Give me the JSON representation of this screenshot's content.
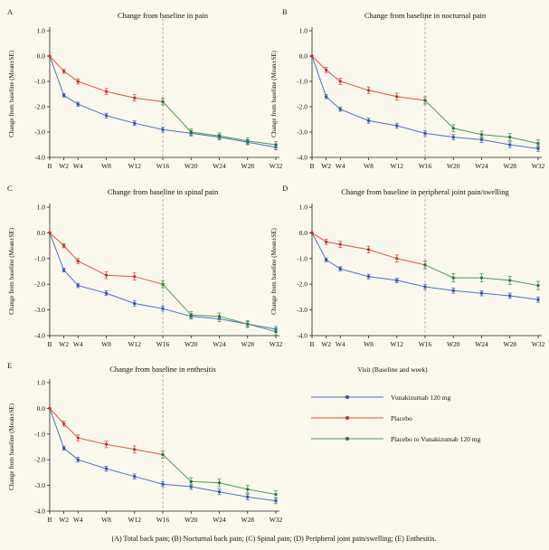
{
  "legend": {
    "title": "Visit (Baseline and week)",
    "items": [
      {
        "label": "Vunakizumab 120 mg",
        "color": "#4a72c8"
      },
      {
        "label": "Placebo",
        "color": "#e0533f"
      },
      {
        "label": "Placebo to Vunakizumab 120 mg",
        "color": "#4f9a5a"
      }
    ]
  },
  "caption": "(A)  Total back pain; (B) Nocturnal back pain; (C) Spinal pain; (D) Peripheral joint pain/swelling; (E) Enthesitis.",
  "chart_data": [
    {
      "panel": "A",
      "type": "line",
      "title": "Change from baseline in pain",
      "ylabel": "Change from baseline (Mean±SE)",
      "ylim": [
        -4.0,
        1.0
      ],
      "yticks": [
        "1.0",
        "0.0",
        "-1.0",
        "-2.0",
        "-3.0",
        "-4.0"
      ],
      "x": [
        "B",
        "W2",
        "W4",
        "W8",
        "W12",
        "W16",
        "W20",
        "W24",
        "W28",
        "W32"
      ],
      "x_pos": [
        0,
        2,
        4,
        8,
        12,
        16,
        20,
        24,
        28,
        32
      ],
      "reference_line_x": "W16",
      "series": [
        {
          "name": "Vunakizumab 120 mg",
          "x": [
            0,
            2,
            4,
            8,
            12,
            16,
            20,
            24,
            28,
            32
          ],
          "y": [
            0,
            -1.55,
            -1.9,
            -2.35,
            -2.65,
            -2.9,
            -3.05,
            -3.2,
            -3.4,
            -3.6
          ],
          "se": [
            0,
            0.07,
            0.08,
            0.09,
            0.09,
            0.1,
            0.1,
            0.1,
            0.1,
            0.1
          ]
        },
        {
          "name": "Placebo",
          "x": [
            0,
            2,
            4,
            8,
            12,
            16
          ],
          "y": [
            0,
            -0.6,
            -1.0,
            -1.4,
            -1.65,
            -1.8
          ],
          "se": [
            0,
            0.08,
            0.1,
            0.12,
            0.13,
            0.13
          ]
        },
        {
          "name": "Placebo to Vunakizumab 120 mg",
          "x": [
            16,
            20,
            24,
            28,
            32
          ],
          "y": [
            -1.8,
            -3.0,
            -3.15,
            -3.35,
            -3.5
          ],
          "se": [
            0.13,
            0.12,
            0.12,
            0.12,
            0.12
          ]
        }
      ]
    },
    {
      "panel": "B",
      "type": "line",
      "title": "Change from baseline in nocturnal pain",
      "ylabel": "Change from baseline (Mean±SE)",
      "ylim": [
        -4.0,
        1.0
      ],
      "yticks": [
        "1.0",
        "0.0",
        "-1.0",
        "-2.0",
        "-3.0",
        "-4.0"
      ],
      "x": [
        "B",
        "W2",
        "W4",
        "W8",
        "W12",
        "W16",
        "W20",
        "W24",
        "W28",
        "W32"
      ],
      "x_pos": [
        0,
        2,
        4,
        8,
        12,
        16,
        20,
        24,
        28,
        32
      ],
      "reference_line_x": "W16",
      "series": [
        {
          "name": "Vunakizumab 120 mg",
          "x": [
            0,
            2,
            4,
            8,
            12,
            16,
            20,
            24,
            28,
            32
          ],
          "y": [
            0,
            -1.6,
            -2.1,
            -2.55,
            -2.75,
            -3.05,
            -3.2,
            -3.3,
            -3.5,
            -3.65
          ],
          "se": [
            0,
            0.08,
            0.08,
            0.1,
            0.1,
            0.1,
            0.1,
            0.11,
            0.11,
            0.11
          ]
        },
        {
          "name": "Placebo",
          "x": [
            0,
            2,
            4,
            8,
            12,
            16
          ],
          "y": [
            0,
            -0.55,
            -1.0,
            -1.35,
            -1.6,
            -1.75
          ],
          "se": [
            0,
            0.1,
            0.12,
            0.13,
            0.14,
            0.14
          ]
        },
        {
          "name": "Placebo to Vunakizumab 120 mg",
          "x": [
            16,
            20,
            24,
            28,
            32
          ],
          "y": [
            -1.75,
            -2.85,
            -3.1,
            -3.2,
            -3.45
          ],
          "se": [
            0.14,
            0.14,
            0.14,
            0.14,
            0.14
          ]
        }
      ]
    },
    {
      "panel": "C",
      "type": "line",
      "title": "Change from baseline in spinal pain",
      "ylabel": "Change from baseline (Mean±SE)",
      "ylim": [
        -4.0,
        1.0
      ],
      "yticks": [
        "1.0",
        "0.0",
        "-1.0",
        "-2.0",
        "-3.0",
        "-4.0"
      ],
      "x": [
        "B",
        "W2",
        "W4",
        "W8",
        "W12",
        "W16",
        "W20",
        "W24",
        "W28",
        "W32"
      ],
      "x_pos": [
        0,
        2,
        4,
        8,
        12,
        16,
        20,
        24,
        28,
        32
      ],
      "reference_line_x": "W16",
      "series": [
        {
          "name": "Vunakizumab 120 mg",
          "x": [
            0,
            2,
            4,
            8,
            12,
            16,
            20,
            24,
            28,
            32
          ],
          "y": [
            0,
            -1.45,
            -2.05,
            -2.35,
            -2.75,
            -2.95,
            -3.25,
            -3.35,
            -3.55,
            -3.75
          ],
          "se": [
            0,
            0.07,
            0.08,
            0.09,
            0.1,
            0.1,
            0.1,
            0.1,
            0.1,
            0.1
          ]
        },
        {
          "name": "Placebo",
          "x": [
            0,
            2,
            4,
            8,
            12,
            16
          ],
          "y": [
            0,
            -0.5,
            -1.1,
            -1.65,
            -1.7,
            -2.0
          ],
          "se": [
            0,
            0.08,
            0.1,
            0.13,
            0.14,
            0.14
          ]
        },
        {
          "name": "Placebo to Vunakizumab 120 mg",
          "x": [
            16,
            20,
            24,
            28,
            32
          ],
          "y": [
            -2.0,
            -3.2,
            -3.25,
            -3.55,
            -3.85
          ],
          "se": [
            0.14,
            0.13,
            0.13,
            0.13,
            0.13
          ]
        }
      ]
    },
    {
      "panel": "D",
      "type": "line",
      "title": "Change from baseline in peripheral joint pain/swelling",
      "ylabel": "Change from baseline (Mean±SE)",
      "ylim": [
        -4.0,
        1.0
      ],
      "yticks": [
        "1.0",
        "0.0",
        "-1.0",
        "-2.0",
        "-3.0",
        "-4.0"
      ],
      "x": [
        "B",
        "W2",
        "W4",
        "W8",
        "W12",
        "W16",
        "W20",
        "W24",
        "W28",
        "W32"
      ],
      "x_pos": [
        0,
        2,
        4,
        8,
        12,
        16,
        20,
        24,
        28,
        32
      ],
      "reference_line_x": "W16",
      "series": [
        {
          "name": "Vunakizumab 120 mg",
          "x": [
            0,
            2,
            4,
            8,
            12,
            16,
            20,
            24,
            28,
            32
          ],
          "y": [
            0,
            -1.05,
            -1.4,
            -1.7,
            -1.85,
            -2.1,
            -2.25,
            -2.35,
            -2.45,
            -2.6
          ],
          "se": [
            0,
            0.07,
            0.08,
            0.09,
            0.09,
            0.1,
            0.1,
            0.1,
            0.1,
            0.1
          ]
        },
        {
          "name": "Placebo",
          "x": [
            0,
            2,
            4,
            8,
            12,
            16
          ],
          "y": [
            0,
            -0.35,
            -0.45,
            -0.65,
            -1.0,
            -1.25
          ],
          "se": [
            0,
            0.1,
            0.12,
            0.13,
            0.14,
            0.15
          ]
        },
        {
          "name": "Placebo to Vunakizumab 120 mg",
          "x": [
            16,
            20,
            24,
            28,
            32
          ],
          "y": [
            -1.25,
            -1.75,
            -1.75,
            -1.85,
            -2.05
          ],
          "se": [
            0.15,
            0.16,
            0.16,
            0.16,
            0.16
          ]
        }
      ]
    },
    {
      "panel": "E",
      "type": "line",
      "title": "Change from baseline in enthesitis",
      "ylabel": "Change from baseline (Mean±SE)",
      "ylim": [
        -4.0,
        1.0
      ],
      "yticks": [
        "1.0",
        "0.0",
        "-1.0",
        "-2.0",
        "-3.0",
        "-4.0"
      ],
      "x": [
        "B",
        "W2",
        "W4",
        "W8",
        "W12",
        "W16",
        "W20",
        "W24",
        "W28",
        "W32"
      ],
      "x_pos": [
        0,
        2,
        4,
        8,
        12,
        16,
        20,
        24,
        28,
        32
      ],
      "reference_line_x": "W16",
      "series": [
        {
          "name": "Vunakizumab 120 mg",
          "x": [
            0,
            2,
            4,
            8,
            12,
            16,
            20,
            24,
            28,
            32
          ],
          "y": [
            0,
            -1.55,
            -2.0,
            -2.35,
            -2.65,
            -2.95,
            -3.05,
            -3.25,
            -3.45,
            -3.6
          ],
          "se": [
            0,
            0.08,
            0.09,
            0.1,
            0.1,
            0.1,
            0.1,
            0.11,
            0.11,
            0.11
          ]
        },
        {
          "name": "Placebo",
          "x": [
            0,
            2,
            4,
            8,
            12,
            16
          ],
          "y": [
            0,
            -0.6,
            -1.15,
            -1.4,
            -1.6,
            -1.8
          ],
          "se": [
            0,
            0.1,
            0.12,
            0.13,
            0.14,
            0.14
          ]
        },
        {
          "name": "Placebo to Vunakizumab 120 mg",
          "x": [
            16,
            20,
            24,
            28,
            32
          ],
          "y": [
            -1.8,
            -2.85,
            -2.9,
            -3.15,
            -3.35
          ],
          "se": [
            0.14,
            0.15,
            0.15,
            0.15,
            0.15
          ]
        }
      ]
    }
  ]
}
